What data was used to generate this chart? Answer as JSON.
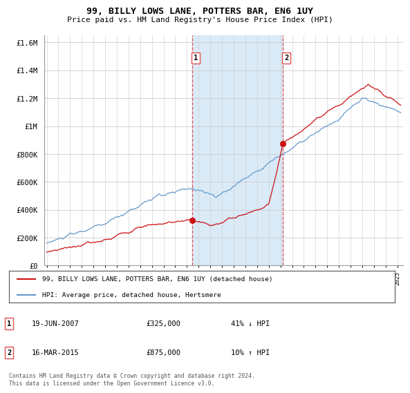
{
  "title": "99, BILLY LOWS LANE, POTTERS BAR, EN6 1UY",
  "subtitle": "Price paid vs. HM Land Registry's House Price Index (HPI)",
  "legend_line1": "99, BILLY LOWS LANE, POTTERS BAR, EN6 1UY (detached house)",
  "legend_line2": "HPI: Average price, detached house, Hertsmere",
  "table_rows": [
    {
      "num": "1",
      "date": "19-JUN-2007",
      "price": "£325,000",
      "hpi": "41% ↓ HPI"
    },
    {
      "num": "2",
      "date": "16-MAR-2015",
      "price": "£875,000",
      "hpi": "10% ↑ HPI"
    }
  ],
  "footer": "Contains HM Land Registry data © Crown copyright and database right 2024.\nThis data is licensed under the Open Government Licence v3.0.",
  "sale1_year": 2007.47,
  "sale1_price": 325000,
  "sale2_year": 2015.21,
  "sale2_price": 875000,
  "vline1_year": 2007.47,
  "vline2_year": 2015.21,
  "shade_color": "#daeaf7",
  "vline_color": "#e05050",
  "red_line_color": "#cc1111",
  "blue_line_color": "#6699cc",
  "ylim_max": 1650000,
  "yticks": [
    0,
    200000,
    400000,
    600000,
    800000,
    1000000,
    1200000,
    1400000,
    1600000
  ],
  "xmin": 1994.8,
  "xmax": 2025.5,
  "bg_color": "#ffffff",
  "grid_color": "#cccccc"
}
